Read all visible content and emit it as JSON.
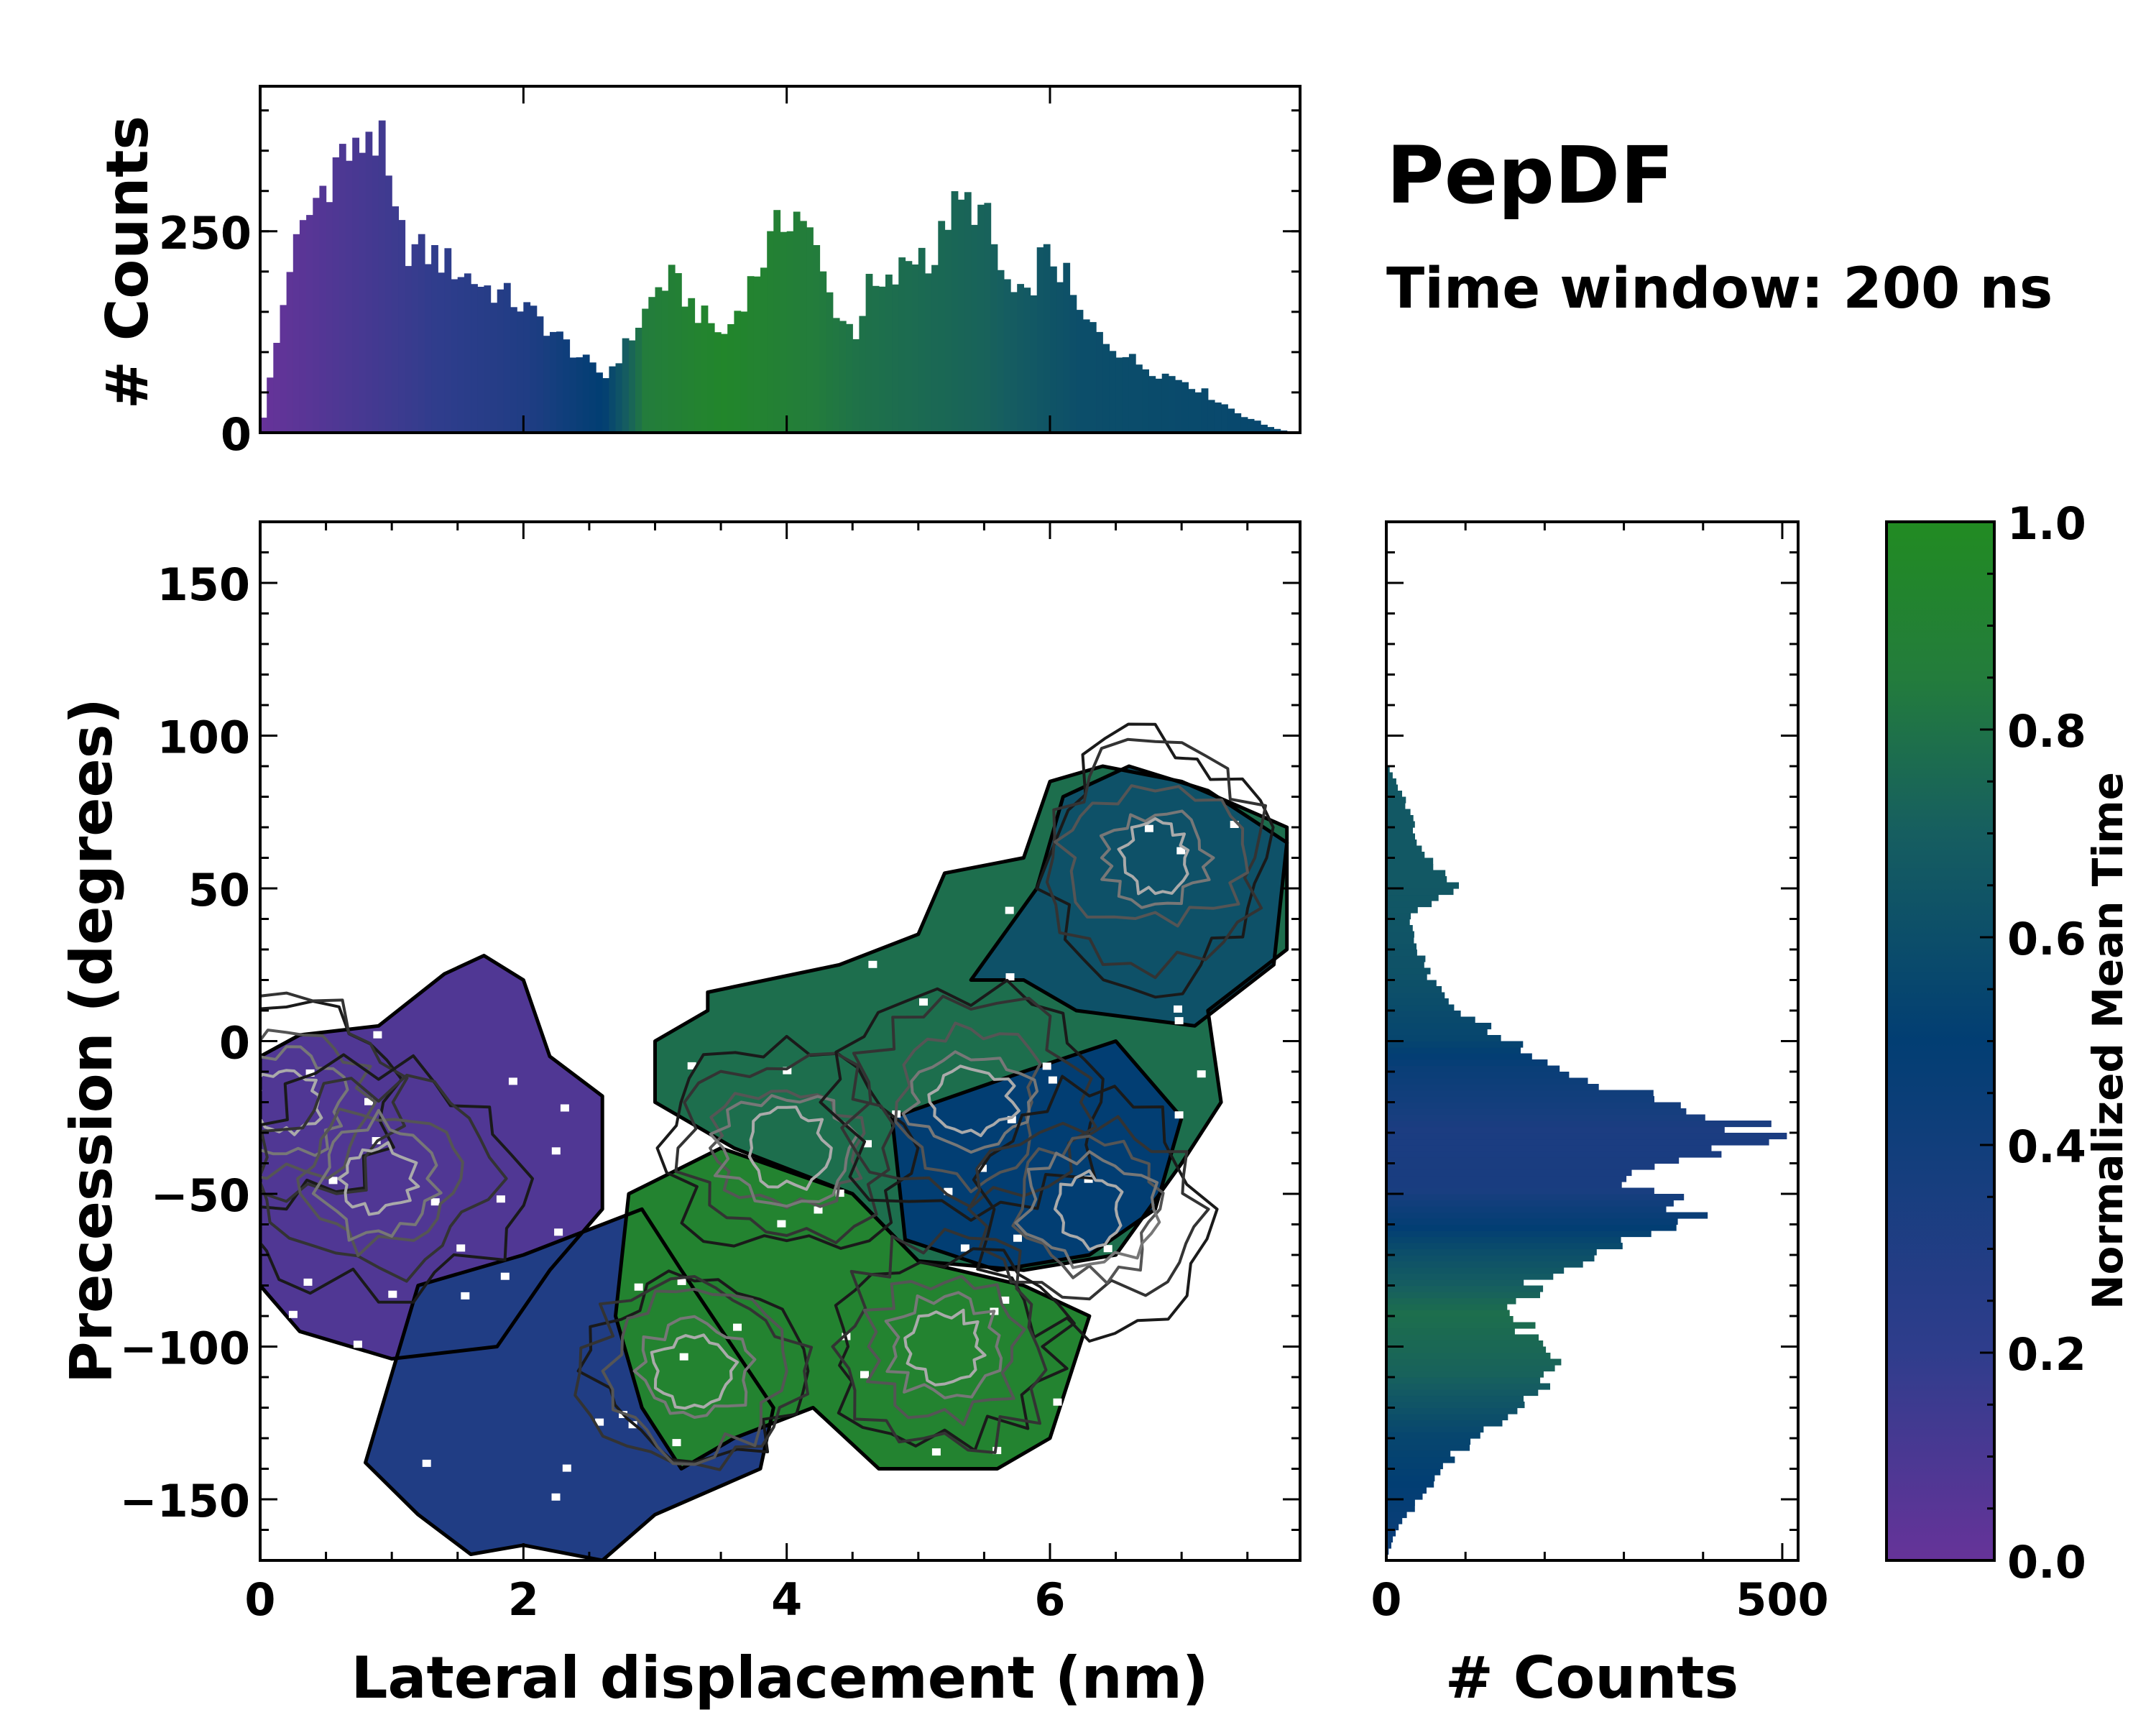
{
  "chart_data": [
    {
      "id": "top_histogram",
      "type": "bar",
      "title": "",
      "xlabel": "",
      "ylabel": "# Counts",
      "xlim": [
        0,
        7.9
      ],
      "ylim": [
        0,
        430
      ],
      "yticks": [
        0,
        250
      ],
      "ytick_labels": [
        "0",
        "250"
      ],
      "bin_width": 0.05,
      "profile_x": [
        0.0,
        0.1,
        0.2,
        0.3,
        0.4,
        0.5,
        0.6,
        0.7,
        0.8,
        0.9,
        1.0,
        1.1,
        1.3,
        1.5,
        1.7,
        1.9,
        2.1,
        2.3,
        2.5,
        2.6,
        2.7,
        2.8,
        2.9,
        3.0,
        3.1,
        3.3,
        3.5,
        3.7,
        3.9,
        4.0,
        4.1,
        4.2,
        4.3,
        4.4,
        4.5,
        4.6,
        4.7,
        4.8,
        4.9,
        5.0,
        5.1,
        5.2,
        5.3,
        5.4,
        5.5,
        5.6,
        5.7,
        5.8,
        5.9,
        6.0,
        6.1,
        6.2,
        6.3,
        6.4,
        6.6,
        6.8,
        7.0,
        7.2,
        7.4,
        7.6,
        7.8
      ],
      "profile_y": [
        20,
        110,
        210,
        250,
        290,
        320,
        350,
        340,
        380,
        350,
        260,
        230,
        220,
        200,
        180,
        165,
        140,
        110,
        80,
        70,
        95,
        120,
        150,
        180,
        190,
        150,
        120,
        185,
        250,
        275,
        270,
        220,
        170,
        140,
        125,
        180,
        175,
        190,
        215,
        225,
        215,
        270,
        280,
        285,
        260,
        200,
        170,
        165,
        215,
        215,
        190,
        145,
        130,
        115,
        90,
        75,
        65,
        45,
        25,
        10,
        0
      ],
      "color_profile_x": [
        0.0,
        2.0,
        2.6,
        2.9,
        3.5,
        4.0,
        4.5,
        5.5,
        6.2,
        7.8
      ],
      "color_profile_v": [
        0.0,
        0.3,
        0.52,
        0.85,
        0.95,
        0.88,
        0.8,
        0.72,
        0.6,
        0.55
      ]
    },
    {
      "id": "main_density",
      "type": "heatmap",
      "title": "",
      "xlabel": "Lateral displacement (nm)",
      "ylabel": "Precession (degrees)",
      "xlim": [
        0,
        7.9
      ],
      "ylim": [
        -170,
        170
      ],
      "xticks": [
        0,
        2,
        4,
        6
      ],
      "xtick_labels": [
        "0",
        "2",
        "4",
        "6"
      ],
      "yticks": [
        150,
        100,
        50,
        0,
        -50,
        -100,
        -150
      ],
      "ytick_labels": [
        "150",
        "100",
        "50",
        "0",
        "−50",
        "−100",
        "−150"
      ],
      "regions": [
        {
          "name": "purple-blob",
          "value": 0.08,
          "outline": [
            [
              0.0,
              -5
            ],
            [
              0.3,
              2
            ],
            [
              0.9,
              5
            ],
            [
              1.4,
              22
            ],
            [
              1.7,
              28
            ],
            [
              2.0,
              20
            ],
            [
              2.2,
              -5
            ],
            [
              2.6,
              -18
            ],
            [
              2.6,
              -55
            ],
            [
              2.2,
              -75
            ],
            [
              1.8,
              -100
            ],
            [
              1.0,
              -104
            ],
            [
              0.3,
              -95
            ],
            [
              0.0,
              -80
            ]
          ]
        },
        {
          "name": "lower-blue-tail",
          "value": 0.3,
          "outline": [
            [
              1.2,
              -80
            ],
            [
              2.0,
              -70
            ],
            [
              2.9,
              -55
            ],
            [
              3.2,
              -75
            ],
            [
              3.9,
              -120
            ],
            [
              3.8,
              -140
            ],
            [
              3.0,
              -155
            ],
            [
              2.6,
              -170
            ],
            [
              2.0,
              -165
            ],
            [
              1.6,
              -168
            ],
            [
              1.2,
              -155
            ],
            [
              0.8,
              -138
            ]
          ]
        },
        {
          "name": "central-green",
          "value": 0.92,
          "outline": [
            [
              2.8,
              -50
            ],
            [
              3.5,
              -35
            ],
            [
              4.5,
              -50
            ],
            [
              5.0,
              -72
            ],
            [
              5.8,
              -80
            ],
            [
              6.3,
              -90
            ],
            [
              6.0,
              -130
            ],
            [
              5.6,
              -140
            ],
            [
              4.7,
              -140
            ],
            [
              4.2,
              -120
            ],
            [
              3.6,
              -130
            ],
            [
              3.2,
              -140
            ],
            [
              2.9,
              -120
            ],
            [
              2.7,
              -90
            ]
          ]
        },
        {
          "name": "upper-green",
          "value": 0.78,
          "outline": [
            [
              3.0,
              0
            ],
            [
              3.4,
              10
            ],
            [
              3.4,
              16
            ],
            [
              4.4,
              25
            ],
            [
              5.0,
              35
            ],
            [
              5.2,
              55
            ],
            [
              5.8,
              60
            ],
            [
              6.0,
              85
            ],
            [
              6.4,
              90
            ],
            [
              7.0,
              85
            ],
            [
              7.8,
              70
            ],
            [
              7.8,
              30
            ],
            [
              7.2,
              10
            ],
            [
              7.3,
              -20
            ],
            [
              7.0,
              -40
            ],
            [
              6.5,
              -70
            ],
            [
              5.8,
              -75
            ],
            [
              5.0,
              -72
            ],
            [
              4.5,
              -50
            ],
            [
              3.6,
              -35
            ],
            [
              3.0,
              -20
            ]
          ]
        },
        {
          "name": "right-navy",
          "value": 0.5,
          "outline": [
            [
              4.8,
              -25
            ],
            [
              5.8,
              -10
            ],
            [
              6.5,
              0
            ],
            [
              7.0,
              -25
            ],
            [
              6.8,
              -55
            ],
            [
              6.3,
              -70
            ],
            [
              5.6,
              -75
            ],
            [
              4.9,
              -65
            ]
          ]
        },
        {
          "name": "upper-right-teal",
          "value": 0.62,
          "outline": [
            [
              5.4,
              20
            ],
            [
              5.9,
              50
            ],
            [
              6.1,
              80
            ],
            [
              6.6,
              90
            ],
            [
              7.2,
              82
            ],
            [
              7.8,
              65
            ],
            [
              7.7,
              25
            ],
            [
              7.1,
              5
            ],
            [
              6.2,
              10
            ],
            [
              5.8,
              20
            ]
          ]
        }
      ],
      "contour_levels": 5,
      "contour_peaks": [
        [
          0.2,
          -20
        ],
        [
          0.9,
          -45
        ],
        [
          3.3,
          -108
        ],
        [
          4.0,
          -35
        ],
        [
          5.4,
          -20
        ],
        [
          6.3,
          -55
        ],
        [
          5.2,
          -100
        ],
        [
          6.8,
          60
        ]
      ]
    },
    {
      "id": "right_histogram",
      "type": "bar",
      "orientation": "horizontal",
      "title": "",
      "xlabel": "# Counts",
      "ylabel": "",
      "xlim": [
        0,
        520
      ],
      "ylim": [
        -170,
        170
      ],
      "xticks": [
        0,
        500
      ],
      "xtick_labels": [
        "0",
        "500"
      ],
      "bin_width": 2,
      "profile_deg": [
        -170,
        -160,
        -150,
        -140,
        -130,
        -120,
        -110,
        -100,
        -90,
        -80,
        -70,
        -60,
        -55,
        -50,
        -45,
        -40,
        -35,
        -30,
        -25,
        -20,
        -10,
        0,
        10,
        20,
        30,
        40,
        50,
        60,
        70,
        80,
        90
      ],
      "profile_count": [
        0,
        15,
        45,
        75,
        110,
        170,
        210,
        190,
        160,
        190,
        260,
        370,
        380,
        330,
        300,
        380,
        460,
        470,
        420,
        330,
        230,
        150,
        80,
        55,
        40,
        30,
        90,
        45,
        35,
        20,
        0
      ],
      "color_profile_deg": [
        -170,
        -130,
        -110,
        -90,
        -70,
        -50,
        -30,
        -10,
        0,
        20,
        50,
        90
      ],
      "color_profile_v": [
        0.42,
        0.55,
        0.72,
        0.78,
        0.6,
        0.35,
        0.33,
        0.45,
        0.55,
        0.62,
        0.66,
        0.66
      ]
    },
    {
      "id": "colorbar",
      "type": "heatmap",
      "title": "",
      "label": "Normalized Mean Time",
      "range": [
        0.0,
        1.0
      ],
      "ticks": [
        0.0,
        0.2,
        0.4,
        0.6,
        0.8,
        1.0
      ],
      "tick_labels": [
        "0.0",
        "0.2",
        "0.4",
        "0.6",
        "0.8",
        "1.0"
      ],
      "colormap": [
        "#663399",
        "#2f3d8c",
        "#023e73",
        "#165e60",
        "#237c3c",
        "#228b22"
      ]
    }
  ],
  "annotations": {
    "title": "PepDF",
    "subtitle": "Time window: 200 ns"
  }
}
